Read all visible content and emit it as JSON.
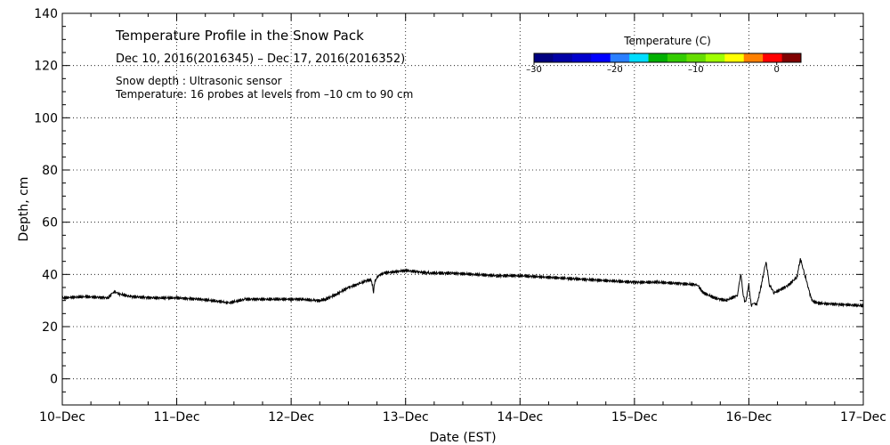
{
  "chart_data": {
    "type": "line",
    "title": "Temperature Profile in the Snow Pack",
    "subtitle": "Dec 10, 2016(2016345) – Dec 17, 2016(2016352)",
    "annotations": [
      "Snow depth : Ultrasonic sensor",
      "Temperature: 16 probes at levels from –10 cm to 90 cm"
    ],
    "xlabel": "Date (EST)",
    "ylabel": "Depth, cm",
    "xlim": [
      0,
      7
    ],
    "ylim": [
      -10,
      140
    ],
    "x_ticks": [
      {
        "value": 0,
        "label": "10–Dec"
      },
      {
        "value": 1,
        "label": "11–Dec"
      },
      {
        "value": 2,
        "label": "12–Dec"
      },
      {
        "value": 3,
        "label": "13–Dec"
      },
      {
        "value": 4,
        "label": "14–Dec"
      },
      {
        "value": 5,
        "label": "15–Dec"
      },
      {
        "value": 6,
        "label": "16–Dec"
      },
      {
        "value": 7,
        "label": "17–Dec"
      }
    ],
    "y_ticks": [
      {
        "value": 0,
        "label": "0"
      },
      {
        "value": 20,
        "label": "20"
      },
      {
        "value": 40,
        "label": "40"
      },
      {
        "value": 60,
        "label": "60"
      },
      {
        "value": 80,
        "label": "80"
      },
      {
        "value": 100,
        "label": "100"
      },
      {
        "value": 120,
        "label": "120"
      },
      {
        "value": 140,
        "label": "140"
      }
    ],
    "grid": true,
    "series": [
      {
        "color": "#000000",
        "x": [
          0,
          0.2,
          0.4,
          0.45,
          0.5,
          0.6,
          0.8,
          1.0,
          1.2,
          1.4,
          1.45,
          1.6,
          1.8,
          2.0,
          2.1,
          2.2,
          2.25,
          2.3,
          2.4,
          2.5,
          2.6,
          2.65,
          2.7,
          2.72,
          2.73,
          2.75,
          2.8,
          2.9,
          3.0,
          3.1,
          3.2,
          3.4,
          3.6,
          3.8,
          4.0,
          4.2,
          4.4,
          4.6,
          4.8,
          5.0,
          5.2,
          5.4,
          5.55,
          5.6,
          5.7,
          5.8,
          5.9,
          5.93,
          5.95,
          5.97,
          6.0,
          6.02,
          6.04,
          6.07,
          6.1,
          6.15,
          6.18,
          6.22,
          6.27,
          6.35,
          6.42,
          6.45,
          6.5,
          6.55,
          6.6,
          6.8,
          7.0
        ],
        "y": [
          31,
          31.5,
          31,
          33.5,
          32.5,
          31.5,
          31,
          31,
          30.5,
          29.5,
          29,
          30.5,
          30.5,
          30.5,
          30.5,
          30,
          30,
          30.5,
          32.5,
          35,
          36.5,
          37.5,
          38,
          33.5,
          37,
          39,
          40.5,
          41,
          41.5,
          41,
          40.5,
          40.5,
          40,
          39.5,
          39.5,
          39,
          38.5,
          38,
          37.5,
          37,
          37,
          36.5,
          36,
          33,
          31,
          30,
          32,
          40.5,
          32,
          29,
          36,
          28,
          29,
          28.5,
          34,
          45,
          36,
          33,
          34,
          36,
          39,
          46,
          38,
          30,
          29,
          28.5,
          28
        ]
      }
    ],
    "colorbar": {
      "title": "Temperature (C)",
      "colors": [
        "#000080",
        "#0000a6",
        "#0000cd",
        "#0000ff",
        "#2a7fff",
        "#00ddff",
        "#00b000",
        "#33cc00",
        "#66dd00",
        "#a0ff00",
        "#ffff00",
        "#ff8000",
        "#ff0000",
        "#800000"
      ],
      "range": [
        -30,
        3
      ],
      "ticks": [
        {
          "value": -30,
          "label": "–30"
        },
        {
          "value": -20,
          "label": "–20"
        },
        {
          "value": -10,
          "label": "–10"
        },
        {
          "value": 0,
          "label": "0"
        }
      ]
    }
  }
}
